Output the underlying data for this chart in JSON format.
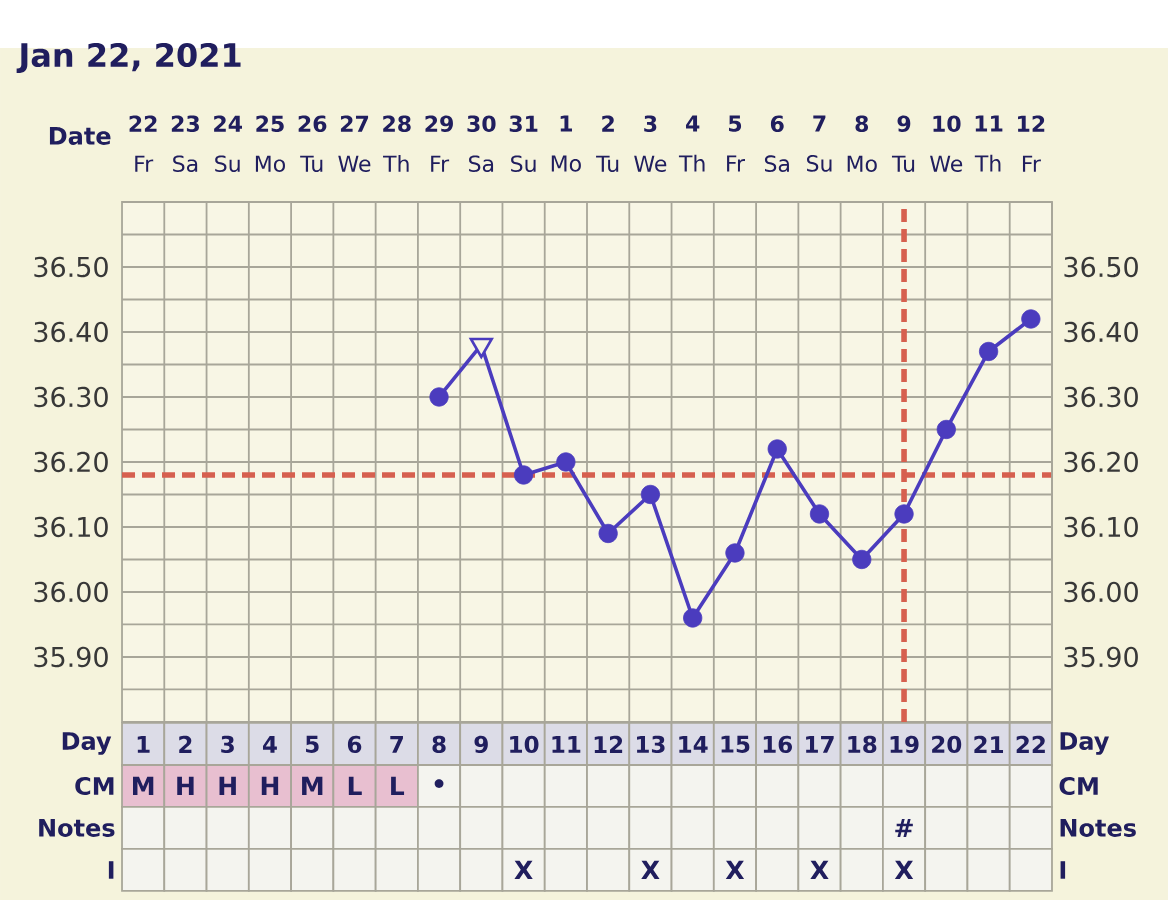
{
  "chart_data": [
    {
      "type": "line",
      "title": "Jan 22, 2021",
      "xlabel": "Day",
      "x2label": "Date",
      "xlim": [
        0.5,
        22.5
      ],
      "xticks": [
        1,
        2,
        3,
        4,
        5,
        6,
        7,
        8,
        9,
        10,
        11,
        12,
        13,
        14,
        15,
        16,
        17,
        18,
        19,
        20,
        21,
        22
      ],
      "x2lim": [
        "2021-01-21T12:00",
        "2021-02-12T12:00"
      ],
      "x2ticks": [
        {
          "value": "2021-01-22",
          "label": "**22** Fr"
        },
        {
          "value": "2021-01-23",
          "label": "**23** Sa"
        },
        {
          "value": "2021-01-24",
          "label": "**24** Su"
        },
        {
          "value": "2021-01-25",
          "label": "**25** Mo"
        },
        {
          "value": "2021-01-26",
          "label": "**26** Tu"
        },
        {
          "value": "2021-01-27",
          "label": "**27** We"
        },
        {
          "value": "2021-01-28",
          "label": "**28** Th"
        },
        {
          "value": "2021-01-29",
          "label": "**29** Fr"
        },
        {
          "value": "2021-01-30",
          "label": "**30** Sa"
        },
        {
          "value": "2021-01-31",
          "label": "**31** Su"
        },
        {
          "value": "2021-02-01",
          "label": "**1** Mo"
        },
        {
          "value": "2021-02-02",
          "label": "**2** Tu"
        },
        {
          "value": "2021-02-03",
          "label": "**3** We"
        },
        {
          "value": "2021-02-04",
          "label": "**4** Th"
        },
        {
          "value": "2021-02-05",
          "label": "**5** Fr"
        },
        {
          "value": "2021-02-06",
          "label": "**6** Sa"
        },
        {
          "value": "2021-02-07",
          "label": "**7** Su"
        },
        {
          "value": "2021-02-08",
          "label": "**8** Mo"
        },
        {
          "value": "2021-02-09",
          "label": "**9** Tu"
        },
        {
          "value": "2021-02-10",
          "label": "**10** We"
        },
        {
          "value": "2021-02-11",
          "label": "**11** Th"
        },
        {
          "value": "2021-02-12",
          "label": "**12** Fr"
        }
      ],
      "ylim": [
        35.8,
        36.6
      ],
      "yticks": [
        {
          "value": 35.85,
          "label": null
        },
        {
          "value": 35.9,
          "label": "35.90"
        },
        {
          "value": 35.95,
          "label": null
        },
        {
          "value": 36.0,
          "label": "36.00"
        },
        {
          "value": 36.05,
          "label": null
        },
        {
          "value": 36.1,
          "label": "36.10"
        },
        {
          "value": 36.15,
          "label": null
        },
        {
          "value": 36.2,
          "label": "36.20"
        },
        {
          "value": 36.25,
          "label": null
        },
        {
          "value": 36.3,
          "label": "36.30"
        },
        {
          "value": 36.35,
          "label": null
        },
        {
          "value": 36.4,
          "label": "36.40"
        },
        {
          "value": 36.45,
          "label": null
        },
        {
          "value": 36.5,
          "label": "36.50"
        },
        {
          "value": 36.55,
          "label": null
        }
      ],
      "y2lim": [
        35.8,
        36.6
      ],
      "y2ticks": [
        {
          "value": 35.9,
          "label": "35.90"
        },
        {
          "value": 36.0,
          "label": "36.00"
        },
        {
          "value": 36.1,
          "label": "36.10"
        },
        {
          "value": 36.2,
          "label": "36.20"
        },
        {
          "value": 36.3,
          "label": "36.30"
        },
        {
          "value": 36.4,
          "label": "36.40"
        },
        {
          "value": 36.5,
          "label": "36.50"
        }
      ],
      "grid": true,
      "ref_lines": [
        {
          "axis": "y",
          "value": 36.18,
          "color": "#d6604f",
          "line_style": "dashed"
        },
        {
          "axis": "x",
          "value": 19,
          "color": "#d6604f",
          "line_style": "dashed"
        }
      ],
      "series": [
        {
          "type": "line",
          "color": "#4b3cbe",
          "marker": "none",
          "x": [
            8,
            9,
            10,
            11,
            12,
            13,
            14,
            15,
            16,
            17,
            18,
            19,
            20,
            21,
            22
          ],
          "values": [
            36.3,
            36.38,
            36.18,
            36.2,
            36.09,
            36.15,
            35.96,
            36.06,
            36.22,
            36.12,
            36.05,
            36.12,
            36.25,
            36.37,
            36.42
          ]
        },
        {
          "type": "scatter",
          "color": "#4b3cbe",
          "marker": "circle",
          "x": [
            8,
            10,
            11,
            12,
            13,
            14,
            15,
            16,
            17,
            18,
            19,
            20,
            21,
            22
          ],
          "values": [
            36.3,
            36.18,
            36.2,
            36.09,
            36.15,
            35.96,
            36.06,
            36.22,
            36.12,
            36.05,
            36.12,
            36.25,
            36.37,
            36.42
          ]
        },
        {
          "type": "scatter",
          "color": "#4b3cbe",
          "marker": "triangle",
          "x": [
            9
          ],
          "values": [
            36.38
          ]
        }
      ]
    },
    {
      "type": "heatmap",
      "categories": [
        null,
        null,
        null,
        null,
        null,
        null,
        null,
        null,
        null,
        null,
        null,
        null,
        null,
        null,
        null,
        null,
        null,
        null,
        null,
        null,
        null,
        null
      ],
      "y_categories": [
        "CM",
        "Notes",
        "I"
      ],
      "y2_categories": [
        "CM",
        "Notes",
        "I"
      ],
      "cells": [
        [
          null,
          null,
          null,
          null,
          null,
          null,
          null,
          null,
          null,
          null,
          null,
          null,
          null,
          null,
          null,
          null,
          null,
          null,
          null,
          null,
          null,
          null
        ],
        [
          null,
          null,
          null,
          null,
          null,
          null,
          null,
          null,
          null,
          null,
          null,
          null,
          null,
          null,
          null,
          null,
          null,
          null,
          null,
          null,
          null,
          null
        ],
        [
          null,
          null,
          null,
          null,
          null,
          null,
          null,
          null,
          null,
          null,
          null,
          null,
          null,
          null,
          null,
          null,
          null,
          null,
          null,
          null,
          null,
          null
        ]
      ],
      "cell_labels": [
        [
          "M",
          "H",
          "H",
          "H",
          "M",
          "L",
          "L",
          "•",
          null,
          null,
          null,
          null,
          null,
          null,
          null,
          null,
          null,
          null,
          null,
          null,
          null,
          null
        ],
        [
          null,
          null,
          null,
          null,
          null,
          null,
          null,
          null,
          null,
          null,
          null,
          null,
          null,
          null,
          null,
          null,
          null,
          null,
          "#",
          null,
          null,
          null
        ],
        [
          null,
          null,
          null,
          null,
          null,
          null,
          null,
          null,
          null,
          "X",
          null,
          null,
          "X",
          null,
          "X",
          null,
          "X",
          null,
          "X",
          null,
          null,
          null
        ]
      ],
      "colors": [
        [
          "#e8bfd0",
          "#e8bfd0",
          "#e8bfd0",
          "#e8bfd0",
          "#e8bfd0",
          "#e8bfd0",
          "#e8bfd0",
          null,
          null,
          null,
          null,
          null,
          null,
          null,
          null,
          null,
          null,
          null,
          null,
          null,
          null,
          null
        ],
        [
          null,
          null,
          null,
          null,
          null,
          null,
          null,
          null,
          null,
          null,
          null,
          null,
          null,
          null,
          null,
          null,
          null,
          null,
          null,
          null,
          null,
          null
        ],
        [
          null,
          null,
          null,
          null,
          null,
          null,
          null,
          null,
          null,
          null,
          null,
          null,
          null,
          null,
          null,
          null,
          null,
          null,
          null,
          null,
          null,
          null
        ]
      ]
    }
  ]
}
